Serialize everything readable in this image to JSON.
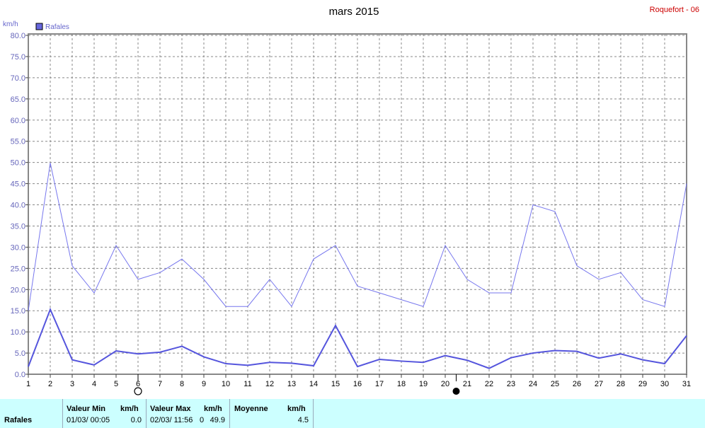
{
  "location_label": "Roquefort - 06",
  "chart_data": {
    "type": "line",
    "title": "mars 2015",
    "ylabel": "km/h",
    "ylim": [
      0,
      80
    ],
    "y_ticks": [
      "0.0",
      "5.0",
      "10.0",
      "15.0",
      "20.0",
      "25.0",
      "30.0",
      "35.0",
      "40.0",
      "45.0",
      "50.0",
      "55.0",
      "60.0",
      "65.0",
      "70.0",
      "75.0",
      "80.0"
    ],
    "x": [
      1,
      2,
      3,
      4,
      5,
      6,
      7,
      8,
      9,
      10,
      11,
      12,
      13,
      14,
      15,
      16,
      17,
      18,
      19,
      20,
      21,
      22,
      23,
      24,
      25,
      26,
      27,
      28,
      29,
      30,
      31
    ],
    "grid": true,
    "legend": {
      "position": "top-left",
      "label": "Rafales",
      "color": "#6666dd"
    },
    "series": [
      {
        "name": "Rafales",
        "role": "max",
        "color": "#7777ee",
        "values": [
          15.0,
          49.9,
          25.6,
          19.2,
          30.4,
          22.4,
          24.0,
          27.2,
          22.4,
          16.0,
          16.0,
          22.4,
          16.0,
          27.2,
          30.4,
          20.8,
          19.2,
          17.6,
          16.0,
          30.4,
          22.4,
          19.2,
          19.2,
          40.0,
          38.4,
          25.6,
          22.4,
          24.0,
          17.6,
          16.0,
          45.0
        ]
      },
      {
        "name": "Rafales",
        "role": "mean",
        "color": "#5555dd",
        "values": [
          1.8,
          15.3,
          3.4,
          2.2,
          5.5,
          4.8,
          5.2,
          6.6,
          4.1,
          2.5,
          2.1,
          2.8,
          2.6,
          2.0,
          11.5,
          1.8,
          3.5,
          3.1,
          2.8,
          4.4,
          3.3,
          1.4,
          3.9,
          5.0,
          5.6,
          5.4,
          3.8,
          4.8,
          3.4,
          2.5,
          9.1
        ]
      }
    ],
    "moon_phases": [
      {
        "day": 6,
        "phase": "full"
      },
      {
        "day": 20.5,
        "phase": "new"
      }
    ]
  },
  "footer": {
    "row_label": "Rafales",
    "min_header": "Valeur Min",
    "min_unit": "km/h",
    "min_datetime": "01/03/  00:05",
    "min_value": "0.0",
    "max_header": "Valeur Max",
    "max_unit": "km/h",
    "max_datetime": "02/03/  11:56",
    "max_time_suffix": "0",
    "max_value": "49.9",
    "avg_header": "Moyenne",
    "avg_unit": "km/h",
    "avg_value": "4.5"
  }
}
